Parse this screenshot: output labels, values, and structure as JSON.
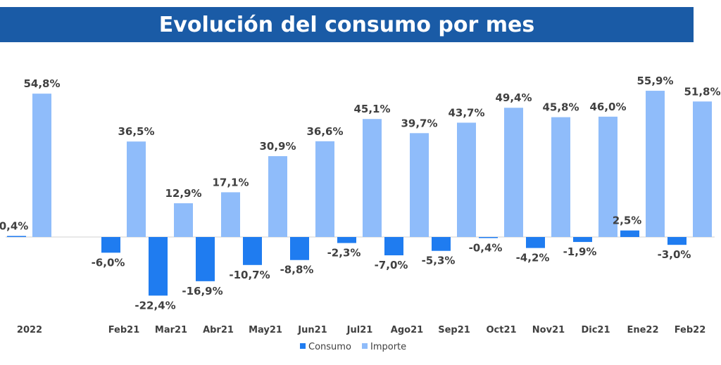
{
  "chart_data": {
    "type": "bar",
    "title": "Evolución del consumo por mes",
    "categories": [
      "2022",
      "",
      "Feb21",
      "Mar21",
      "Abr21",
      "May21",
      "Jun21",
      "Jul21",
      "Ago21",
      "Sep21",
      "Oct21",
      "Nov21",
      "Dic21",
      "Ene22",
      "Feb22"
    ],
    "series": [
      {
        "name": "Consumo",
        "color": "#1f7cf0",
        "values": [
          0.4,
          null,
          -6.0,
          -22.4,
          -16.9,
          -10.7,
          -8.8,
          -2.3,
          -7.0,
          -5.3,
          -0.4,
          -4.2,
          -1.9,
          2.5,
          -3.0
        ],
        "labels": [
          "0,4%",
          "",
          "-6,0%",
          "-22,4%",
          "-16,9%",
          "-10,7%",
          "-8,8%",
          "-2,3%",
          "-7,0%",
          "-5,3%",
          "-0,4%",
          "-4,2%",
          "-1,9%",
          "2,5%",
          "-3,0%"
        ]
      },
      {
        "name": "Importe",
        "color": "#8fbcfa",
        "values": [
          54.8,
          null,
          36.5,
          12.9,
          17.1,
          30.9,
          36.6,
          45.1,
          39.7,
          43.7,
          49.4,
          45.8,
          46.0,
          55.9,
          51.8
        ],
        "labels": [
          "54,8%",
          "",
          "36,5%",
          "12,9%",
          "17,1%",
          "30,9%",
          "36,6%",
          "45,1%",
          "39,7%",
          "43,7%",
          "49,4%",
          "45,8%",
          "46,0%",
          "55,9%",
          "51,8%"
        ]
      }
    ],
    "xlabel": "",
    "ylabel": "",
    "grid": false,
    "legend": "bottom-center"
  }
}
